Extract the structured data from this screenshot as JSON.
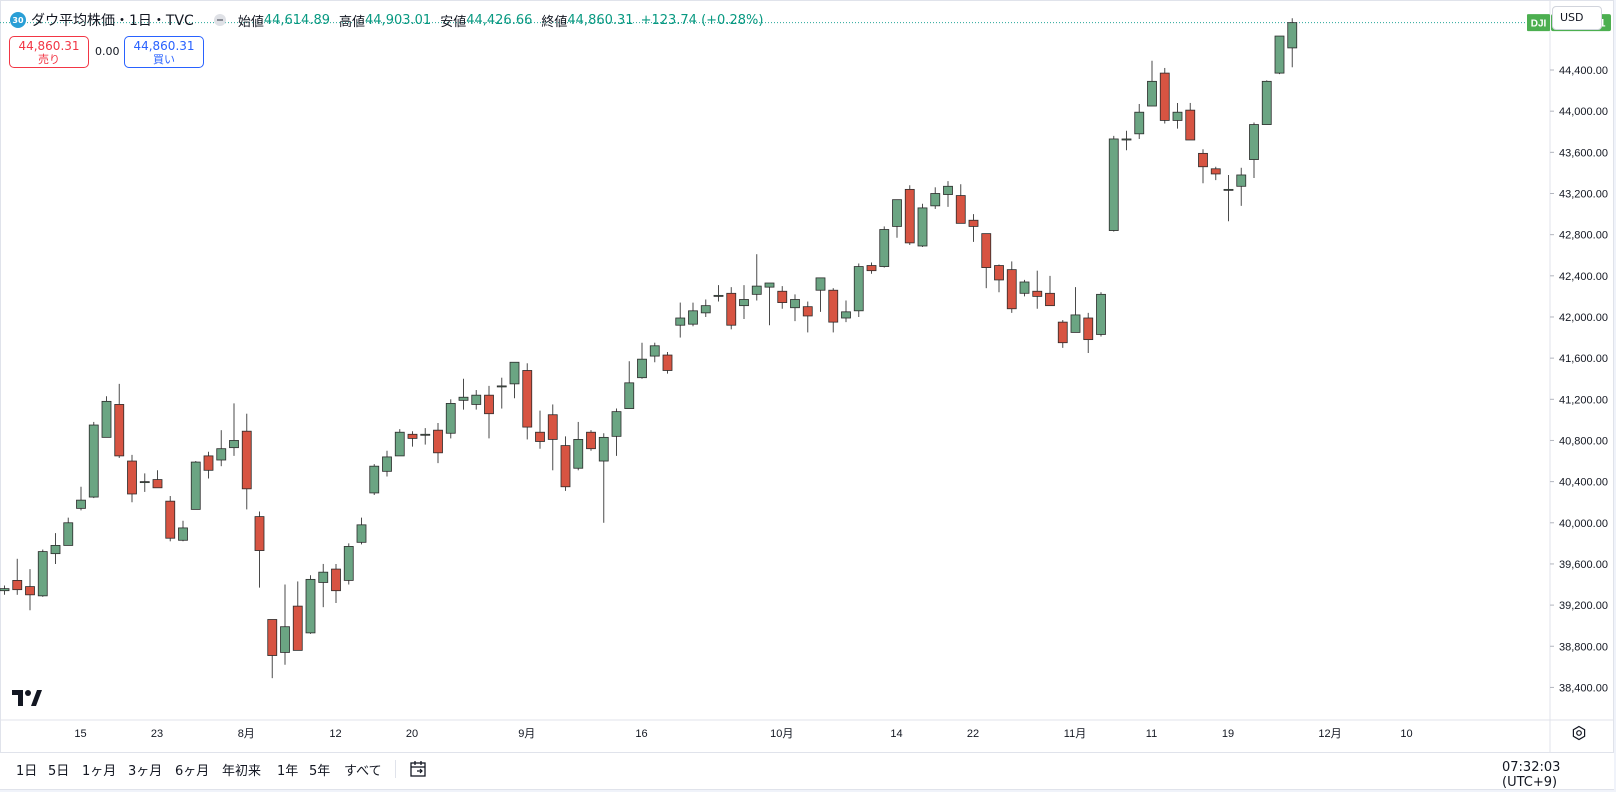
{
  "header": {
    "badge": "30",
    "title": "ダウ平均株価・1日・TVC",
    "open_label": "始値",
    "open_value": "44,614.89",
    "high_label": "高値",
    "high_value": "44,903.01",
    "low_label": "安値",
    "low_value": "44,426.66",
    "close_label": "終値",
    "close_value": "44,860.31",
    "change": "+123.74 (+0.28%)"
  },
  "trade": {
    "sell_price": "44,860.31",
    "sell_label": "売り",
    "spread": "0.00",
    "buy_price": "44,860.31",
    "buy_label": "買い"
  },
  "currency": "USD",
  "last_price_tag": {
    "symbol": "DJI",
    "value": "44,860.31"
  },
  "bottom": {
    "ranges": [
      "1日",
      "5日",
      "1ヶ月",
      "3ヶ月",
      "6ヶ月",
      "年初来",
      "1年",
      "5年",
      "すべて"
    ],
    "clock": "07:32:03 (UTC+9)"
  },
  "colors": {
    "up": "#6ba583",
    "down": "#d75442",
    "wick": "#4a4a4a",
    "last_line": "#26a69a",
    "tag_bg": "#4caf50",
    "accent": "#2962ff"
  },
  "chart_data": {
    "type": "candlestick",
    "ylim": [
      38200,
      44750
    ],
    "y_ticks": [
      38400,
      38800,
      39200,
      39600,
      40000,
      40400,
      40800,
      41200,
      41600,
      42000,
      42400,
      42800,
      43200,
      43600,
      44000,
      44400
    ],
    "y_tick_labels": [
      "38,400.00",
      "38,800.00",
      "39,200.00",
      "39,600.00",
      "40,000.00",
      "40,400.00",
      "40,800.00",
      "41,200.00",
      "41,600.00",
      "42,000.00",
      "42,400.00",
      "42,800.00",
      "43,200.00",
      "43,600.00",
      "44,000.00",
      "44,400.00"
    ],
    "x_tick_labels": [
      {
        "label": "15",
        "index": 6
      },
      {
        "label": "23",
        "index": 12
      },
      {
        "label": "8月",
        "index": 19
      },
      {
        "label": "12",
        "index": 26
      },
      {
        "label": "20",
        "index": 32
      },
      {
        "label": "9月",
        "index": 41
      },
      {
        "label": "16",
        "index": 50
      },
      {
        "label": "10月",
        "index": 61
      },
      {
        "label": "14",
        "index": 70
      },
      {
        "label": "22",
        "index": 76
      },
      {
        "label": "11月",
        "index": 84
      },
      {
        "label": "11",
        "index": 90
      },
      {
        "label": "19",
        "index": 96
      },
      {
        "label": "12月",
        "index": 104
      },
      {
        "label": "10",
        "index": 110
      }
    ],
    "last_price": 44860.31,
    "candles": [
      {
        "o": 39340,
        "h": 39390,
        "l": 39300,
        "c": 39360
      },
      {
        "o": 39440,
        "h": 39650,
        "l": 39300,
        "c": 39350
      },
      {
        "o": 39380,
        "h": 39550,
        "l": 39150,
        "c": 39300
      },
      {
        "o": 39290,
        "h": 39740,
        "l": 39280,
        "c": 39720
      },
      {
        "o": 39700,
        "h": 39900,
        "l": 39600,
        "c": 39780
      },
      {
        "o": 39780,
        "h": 40050,
        "l": 39780,
        "c": 40000
      },
      {
        "o": 40140,
        "h": 40350,
        "l": 40120,
        "c": 40220
      },
      {
        "o": 40250,
        "h": 40980,
        "l": 40240,
        "c": 40950
      },
      {
        "o": 40830,
        "h": 41230,
        "l": 40830,
        "c": 41180
      },
      {
        "o": 41150,
        "h": 41350,
        "l": 40630,
        "c": 40650
      },
      {
        "o": 40600,
        "h": 40660,
        "l": 40200,
        "c": 40280
      },
      {
        "o": 40400,
        "h": 40480,
        "l": 40300,
        "c": 40400
      },
      {
        "o": 40420,
        "h": 40510,
        "l": 40340,
        "c": 40340
      },
      {
        "o": 40210,
        "h": 40260,
        "l": 39820,
        "c": 39850
      },
      {
        "o": 39830,
        "h": 40020,
        "l": 39820,
        "c": 39950
      },
      {
        "o": 40130,
        "h": 40600,
        "l": 40130,
        "c": 40590
      },
      {
        "o": 40650,
        "h": 40690,
        "l": 40430,
        "c": 40510
      },
      {
        "o": 40610,
        "h": 40900,
        "l": 40550,
        "c": 40720
      },
      {
        "o": 40730,
        "h": 41160,
        "l": 40650,
        "c": 40800
      },
      {
        "o": 40890,
        "h": 41060,
        "l": 40130,
        "c": 40330
      },
      {
        "o": 40060,
        "h": 40110,
        "l": 39370,
        "c": 39730
      },
      {
        "o": 39060,
        "h": 39060,
        "l": 38490,
        "c": 38710
      },
      {
        "o": 38740,
        "h": 39400,
        "l": 38620,
        "c": 38990
      },
      {
        "o": 39190,
        "h": 39430,
        "l": 38780,
        "c": 38760
      },
      {
        "o": 38930,
        "h": 39490,
        "l": 38920,
        "c": 39450
      },
      {
        "o": 39420,
        "h": 39600,
        "l": 39180,
        "c": 39520
      },
      {
        "o": 39550,
        "h": 39600,
        "l": 39220,
        "c": 39340
      },
      {
        "o": 39440,
        "h": 39800,
        "l": 39400,
        "c": 39770
      },
      {
        "o": 39810,
        "h": 40050,
        "l": 39790,
        "c": 39980
      },
      {
        "o": 40290,
        "h": 40570,
        "l": 40270,
        "c": 40550
      },
      {
        "o": 40500,
        "h": 40700,
        "l": 40450,
        "c": 40640
      },
      {
        "o": 40650,
        "h": 40910,
        "l": 40650,
        "c": 40880
      },
      {
        "o": 40860,
        "h": 40890,
        "l": 40740,
        "c": 40820
      },
      {
        "o": 40860,
        "h": 40920,
        "l": 40760,
        "c": 40860
      },
      {
        "o": 40900,
        "h": 40970,
        "l": 40580,
        "c": 40680
      },
      {
        "o": 40870,
        "h": 41200,
        "l": 40820,
        "c": 41160
      },
      {
        "o": 41190,
        "h": 41400,
        "l": 41100,
        "c": 41220
      },
      {
        "o": 41150,
        "h": 41290,
        "l": 41100,
        "c": 41240
      },
      {
        "o": 41240,
        "h": 41330,
        "l": 40820,
        "c": 41060
      },
      {
        "o": 41330,
        "h": 41410,
        "l": 41110,
        "c": 41330
      },
      {
        "o": 41350,
        "h": 41560,
        "l": 41210,
        "c": 41560
      },
      {
        "o": 41480,
        "h": 41550,
        "l": 40810,
        "c": 40930
      },
      {
        "o": 40880,
        "h": 41090,
        "l": 40720,
        "c": 40790
      },
      {
        "o": 41050,
        "h": 41150,
        "l": 40510,
        "c": 40810
      },
      {
        "o": 40750,
        "h": 40840,
        "l": 40310,
        "c": 40350
      },
      {
        "o": 40530,
        "h": 40980,
        "l": 40510,
        "c": 40810
      },
      {
        "o": 40880,
        "h": 40900,
        "l": 40700,
        "c": 40720
      },
      {
        "o": 40600,
        "h": 40870,
        "l": 40000,
        "c": 40830
      },
      {
        "o": 40840,
        "h": 41110,
        "l": 40650,
        "c": 41080
      },
      {
        "o": 41110,
        "h": 41570,
        "l": 41110,
        "c": 41360
      },
      {
        "o": 41410,
        "h": 41750,
        "l": 41400,
        "c": 41590
      },
      {
        "o": 41620,
        "h": 41750,
        "l": 41560,
        "c": 41720
      },
      {
        "o": 41630,
        "h": 41660,
        "l": 41450,
        "c": 41480
      },
      {
        "o": 41920,
        "h": 42140,
        "l": 41800,
        "c": 41990
      },
      {
        "o": 41930,
        "h": 42140,
        "l": 41910,
        "c": 42060
      },
      {
        "o": 42040,
        "h": 42170,
        "l": 42000,
        "c": 42110
      },
      {
        "o": 42200,
        "h": 42310,
        "l": 42150,
        "c": 42210
      },
      {
        "o": 42230,
        "h": 42290,
        "l": 41880,
        "c": 41920
      },
      {
        "o": 42110,
        "h": 42310,
        "l": 41980,
        "c": 42170
      },
      {
        "o": 42220,
        "h": 42610,
        "l": 42160,
        "c": 42300
      },
      {
        "o": 42290,
        "h": 42330,
        "l": 41920,
        "c": 42330
      },
      {
        "o": 42250,
        "h": 42300,
        "l": 42080,
        "c": 42140
      },
      {
        "o": 42090,
        "h": 42220,
        "l": 41960,
        "c": 42170
      },
      {
        "o": 42100,
        "h": 42150,
        "l": 41850,
        "c": 42010
      },
      {
        "o": 42260,
        "h": 42380,
        "l": 42050,
        "c": 42380
      },
      {
        "o": 42260,
        "h": 42280,
        "l": 41850,
        "c": 41950
      },
      {
        "o": 41990,
        "h": 42160,
        "l": 41950,
        "c": 42050
      },
      {
        "o": 42060,
        "h": 42520,
        "l": 42000,
        "c": 42490
      },
      {
        "o": 42500,
        "h": 42530,
        "l": 42420,
        "c": 42450
      },
      {
        "o": 42490,
        "h": 42880,
        "l": 42480,
        "c": 42850
      },
      {
        "o": 42880,
        "h": 43140,
        "l": 42770,
        "c": 43140
      },
      {
        "o": 43240,
        "h": 43280,
        "l": 42700,
        "c": 42720
      },
      {
        "o": 42690,
        "h": 43100,
        "l": 42680,
        "c": 43060
      },
      {
        "o": 43080,
        "h": 43260,
        "l": 43050,
        "c": 43200
      },
      {
        "o": 43190,
        "h": 43320,
        "l": 43070,
        "c": 43270
      },
      {
        "o": 43180,
        "h": 43290,
        "l": 42920,
        "c": 42910
      },
      {
        "o": 42940,
        "h": 43000,
        "l": 42730,
        "c": 42880
      },
      {
        "o": 42810,
        "h": 42810,
        "l": 42280,
        "c": 42480
      },
      {
        "o": 42500,
        "h": 42510,
        "l": 42240,
        "c": 42360
      },
      {
        "o": 42460,
        "h": 42540,
        "l": 42040,
        "c": 42080
      },
      {
        "o": 42230,
        "h": 42360,
        "l": 42200,
        "c": 42340
      },
      {
        "o": 42250,
        "h": 42450,
        "l": 42080,
        "c": 42200
      },
      {
        "o": 42230,
        "h": 42400,
        "l": 42110,
        "c": 42110
      },
      {
        "o": 41950,
        "h": 41970,
        "l": 41700,
        "c": 41750
      },
      {
        "o": 41850,
        "h": 42290,
        "l": 41850,
        "c": 42020
      },
      {
        "o": 41990,
        "h": 42040,
        "l": 41650,
        "c": 41780
      },
      {
        "o": 41830,
        "h": 42240,
        "l": 41810,
        "c": 42220
      },
      {
        "o": 42840,
        "h": 43760,
        "l": 42830,
        "c": 43730
      },
      {
        "o": 43720,
        "h": 43810,
        "l": 43620,
        "c": 43730
      },
      {
        "o": 43780,
        "h": 44070,
        "l": 43730,
        "c": 43990
      },
      {
        "o": 44050,
        "h": 44490,
        "l": 44050,
        "c": 44290
      },
      {
        "o": 44370,
        "h": 44420,
        "l": 43880,
        "c": 43910
      },
      {
        "o": 43910,
        "h": 44080,
        "l": 43830,
        "c": 43990
      },
      {
        "o": 44010,
        "h": 44080,
        "l": 43720,
        "c": 43720
      },
      {
        "o": 43590,
        "h": 43630,
        "l": 43300,
        "c": 43460
      },
      {
        "o": 43440,
        "h": 43460,
        "l": 43330,
        "c": 43390
      },
      {
        "o": 43240,
        "h": 43380,
        "l": 42930,
        "c": 43240
      },
      {
        "o": 43270,
        "h": 43450,
        "l": 43080,
        "c": 43380
      },
      {
        "o": 43530,
        "h": 43890,
        "l": 43350,
        "c": 43870
      },
      {
        "o": 43870,
        "h": 44300,
        "l": 43870,
        "c": 44290
      },
      {
        "o": 44370,
        "h": 44700,
        "l": 44360,
        "c": 44730
      },
      {
        "o": 44614.89,
        "h": 44903.01,
        "l": 44426.66,
        "c": 44860.31
      }
    ]
  }
}
